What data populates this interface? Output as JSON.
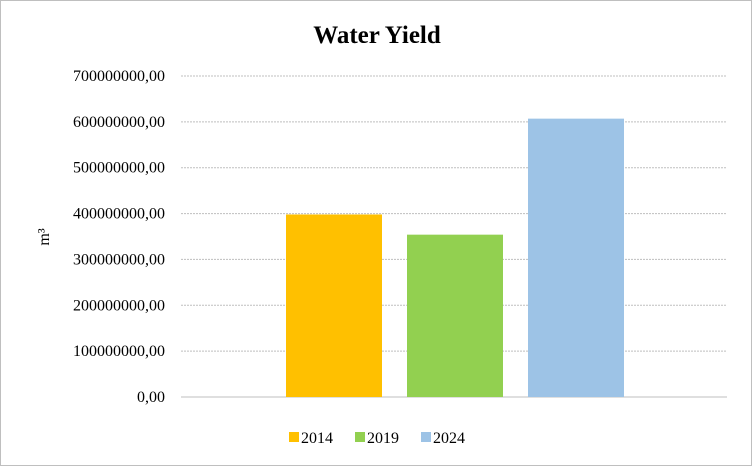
{
  "chart_data": {
    "type": "bar",
    "title": "Water Yield",
    "xlabel": "",
    "ylabel": "m³",
    "categories": [
      "2014",
      "2019",
      "2024"
    ],
    "values": [
      398000000,
      354000000,
      607000000
    ],
    "colors": [
      "#FFC000",
      "#92D050",
      "#9DC3E6"
    ],
    "ylim": [
      0,
      700000000
    ],
    "yticks": [
      0,
      100000000,
      200000000,
      300000000,
      400000000,
      500000000,
      600000000,
      700000000
    ],
    "ytick_labels": [
      "0,00",
      "100000000,00",
      "200000000,00",
      "300000000,00",
      "400000000,00",
      "500000000,00",
      "600000000,00",
      "700000000,00"
    ],
    "grid": true,
    "legend_position": "bottom",
    "legend": [
      "2014",
      "2019",
      "2024"
    ]
  }
}
